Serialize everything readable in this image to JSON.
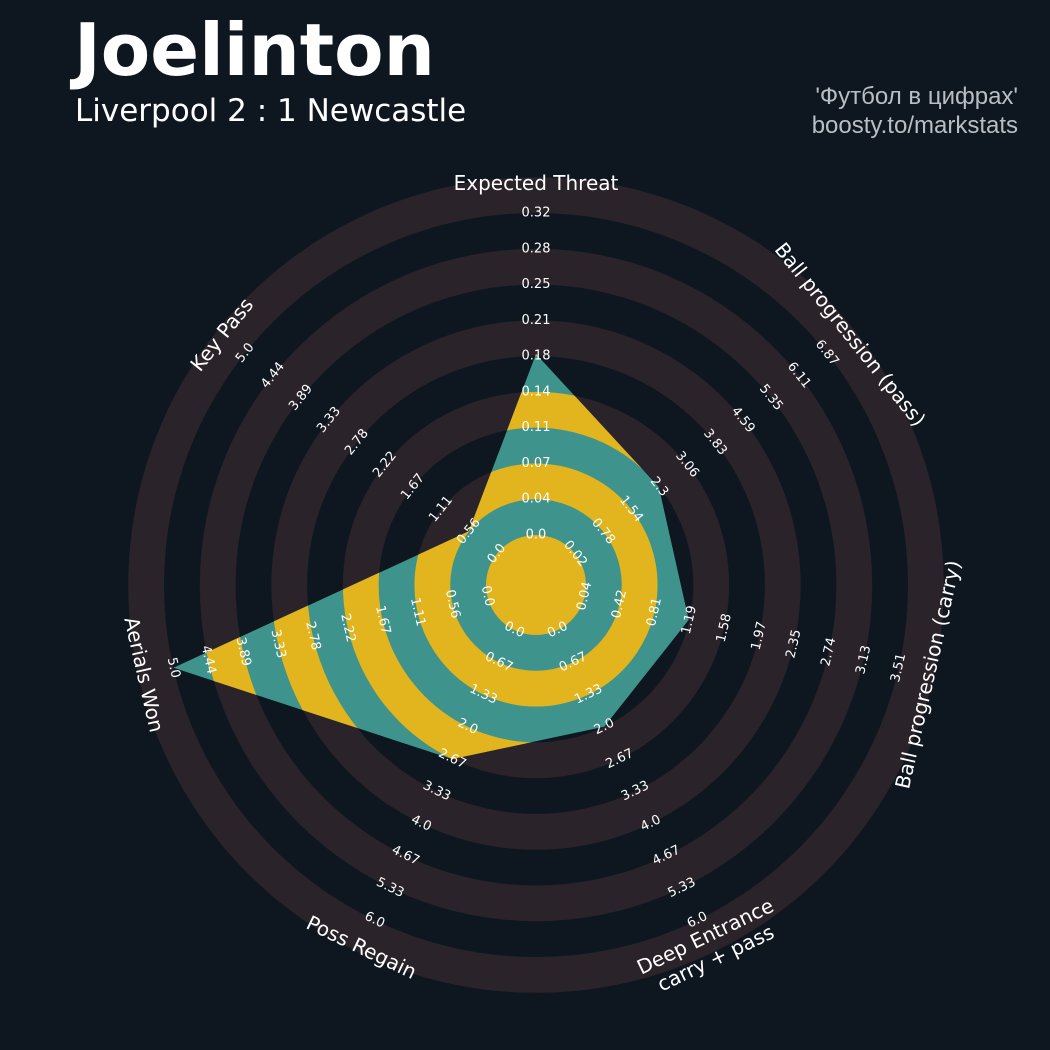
{
  "header": {
    "title": "Joelinton",
    "subtitle": "Liverpool 2 : 1 Newcastle",
    "credit_line1": "'Футбол в цифрах'",
    "credit_line2": "boosty.to/markstats"
  },
  "colors": {
    "background": "#0e1720",
    "rings": "#2a2329",
    "fill_teal": "#3e948c",
    "fill_yellow": "#e2b41d",
    "text": "#ffffff"
  },
  "chart_data": {
    "type": "radar",
    "params": [
      {
        "label": "Expected Threat",
        "min": 0.0,
        "max": 0.32,
        "value": 0.18,
        "ticks": [
          "0.0",
          "0.04",
          "0.07",
          "0.11",
          "0.14",
          "0.18",
          "0.21",
          "0.25",
          "0.28",
          "0.32"
        ]
      },
      {
        "label": "Ball progression (pass)",
        "min": 0.02,
        "max": 6.87,
        "value": 2.3,
        "ticks": [
          "0.02",
          "0.78",
          "1.54",
          "2.3",
          "3.06",
          "3.83",
          "4.59",
          "5.35",
          "6.11",
          "6.87"
        ]
      },
      {
        "label": "Ball progression (carry)",
        "min": 0.04,
        "max": 3.51,
        "value": 1.19,
        "ticks": [
          "0.04",
          "0.42",
          "0.81",
          "1.19",
          "1.58",
          "1.97",
          "2.35",
          "2.74",
          "3.13",
          "3.51"
        ]
      },
      {
        "label": "Deep Entrance\ncarry + pass",
        "min": 0.0,
        "max": 6.0,
        "value": 2.0,
        "ticks": [
          "0.0",
          "0.67",
          "1.33",
          "2.0",
          "2.67",
          "3.33",
          "4.0",
          "4.67",
          "5.33",
          "6.0"
        ]
      },
      {
        "label": "Poss Regain",
        "min": 0.0,
        "max": 6.0,
        "value": 2.67,
        "ticks": [
          "0.0",
          "0.67",
          "1.33",
          "2.0",
          "2.67",
          "3.33",
          "4.0",
          "4.67",
          "5.33",
          "6.0"
        ]
      },
      {
        "label": "Aerials Won",
        "min": 0.0,
        "max": 5.0,
        "value": 5.0,
        "ticks": [
          "0.0",
          "0.56",
          "1.11",
          "1.67",
          "2.22",
          "2.78",
          "3.33",
          "3.89",
          "4.44",
          "5.0"
        ]
      },
      {
        "label": "Key Pass",
        "min": 0.0,
        "max": 5.0,
        "value": 0.56,
        "ticks": [
          "0.0",
          "0.56",
          "1.11",
          "1.67",
          "2.22",
          "2.78",
          "3.33",
          "3.89",
          "4.44",
          "5.0"
        ]
      }
    ]
  }
}
